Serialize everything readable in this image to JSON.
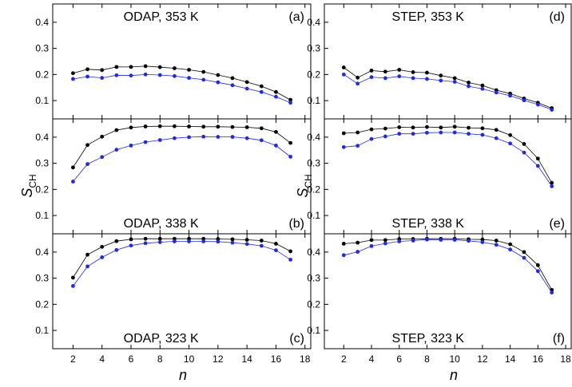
{
  "figure": {
    "ylabel_main": "S",
    "ylabel_sub": "CH",
    "xlabel": "n",
    "series_colors": [
      "#000000",
      "#1f2ae6"
    ]
  },
  "chart_data": [
    {
      "type": "line",
      "title": "ODAP, 353 K",
      "letter": "(a)",
      "x": [
        2,
        3,
        4,
        5,
        6,
        7,
        8,
        9,
        10,
        11,
        12,
        13,
        14,
        15,
        16,
        17
      ],
      "ylim": [
        0.03,
        0.47
      ],
      "yticks": [
        0.1,
        0.2,
        0.3,
        0.4
      ],
      "series": [
        {
          "name": "black",
          "values": [
            0.205,
            0.22,
            0.217,
            0.229,
            0.229,
            0.232,
            0.228,
            0.224,
            0.218,
            0.21,
            0.198,
            0.186,
            0.171,
            0.155,
            0.133,
            0.103
          ]
        },
        {
          "name": "blue",
          "values": [
            0.183,
            0.192,
            0.187,
            0.197,
            0.196,
            0.2,
            0.198,
            0.194,
            0.187,
            0.18,
            0.17,
            0.159,
            0.146,
            0.133,
            0.115,
            0.092
          ]
        }
      ]
    },
    {
      "type": "line",
      "title": "STEP, 353 K",
      "letter": "(d)",
      "x": [
        2,
        3,
        4,
        5,
        6,
        7,
        8,
        9,
        10,
        11,
        12,
        13,
        14,
        15,
        16,
        17
      ],
      "ylim": [
        0.03,
        0.47
      ],
      "yticks": [
        0.1,
        0.2,
        0.3,
        0.4
      ],
      "series": [
        {
          "name": "black",
          "values": [
            0.227,
            0.188,
            0.215,
            0.211,
            0.218,
            0.209,
            0.207,
            0.196,
            0.186,
            0.169,
            0.158,
            0.14,
            0.127,
            0.108,
            0.092,
            0.071
          ]
        },
        {
          "name": "blue",
          "values": [
            0.2,
            0.165,
            0.19,
            0.186,
            0.193,
            0.186,
            0.183,
            0.177,
            0.172,
            0.155,
            0.145,
            0.131,
            0.119,
            0.101,
            0.085,
            0.065
          ]
        }
      ]
    },
    {
      "type": "line",
      "title": "ODAP, 338 K",
      "letter": "(b)",
      "x": [
        2,
        3,
        4,
        5,
        6,
        7,
        8,
        9,
        10,
        11,
        12,
        13,
        14,
        15,
        16,
        17
      ],
      "ylim": [
        0.03,
        0.47
      ],
      "yticks": [
        0.1,
        0.2,
        0.3,
        0.4
      ],
      "series": [
        {
          "name": "black",
          "values": [
            0.284,
            0.37,
            0.402,
            0.427,
            0.437,
            0.441,
            0.442,
            0.442,
            0.441,
            0.44,
            0.44,
            0.439,
            0.438,
            0.434,
            0.42,
            0.378
          ]
        },
        {
          "name": "blue",
          "values": [
            0.23,
            0.297,
            0.324,
            0.352,
            0.368,
            0.381,
            0.389,
            0.396,
            0.4,
            0.402,
            0.401,
            0.401,
            0.396,
            0.388,
            0.368,
            0.325
          ]
        }
      ]
    },
    {
      "type": "line",
      "title": "STEP, 338 K",
      "letter": "(e)",
      "x": [
        2,
        3,
        4,
        5,
        6,
        7,
        8,
        9,
        10,
        11,
        12,
        13,
        14,
        15,
        16,
        17
      ],
      "ylim": [
        0.03,
        0.47
      ],
      "yticks": [
        0.1,
        0.2,
        0.3,
        0.4
      ],
      "series": [
        {
          "name": "black",
          "values": [
            0.415,
            0.418,
            0.43,
            0.433,
            0.438,
            0.437,
            0.439,
            0.437,
            0.44,
            0.436,
            0.434,
            0.428,
            0.408,
            0.374,
            0.318,
            0.225
          ]
        },
        {
          "name": "blue",
          "values": [
            0.362,
            0.367,
            0.393,
            0.403,
            0.413,
            0.413,
            0.417,
            0.418,
            0.418,
            0.413,
            0.409,
            0.396,
            0.376,
            0.341,
            0.29,
            0.212
          ]
        }
      ]
    },
    {
      "type": "line",
      "title": "ODAP, 323 K",
      "letter": "(c)",
      "x": [
        2,
        3,
        4,
        5,
        6,
        7,
        8,
        9,
        10,
        11,
        12,
        13,
        14,
        15,
        16,
        17
      ],
      "ylim": [
        0.03,
        0.47
      ],
      "yticks": [
        0.1,
        0.2,
        0.3,
        0.4
      ],
      "series": [
        {
          "name": "black",
          "values": [
            0.302,
            0.39,
            0.42,
            0.442,
            0.449,
            0.451,
            0.451,
            0.451,
            0.451,
            0.451,
            0.45,
            0.449,
            0.447,
            0.444,
            0.432,
            0.403
          ]
        },
        {
          "name": "blue",
          "values": [
            0.27,
            0.345,
            0.38,
            0.408,
            0.425,
            0.434,
            0.438,
            0.441,
            0.441,
            0.441,
            0.44,
            0.436,
            0.431,
            0.424,
            0.407,
            0.371
          ]
        }
      ]
    },
    {
      "type": "line",
      "title": "STEP, 323 K",
      "letter": "(f)",
      "x": [
        2,
        3,
        4,
        5,
        6,
        7,
        8,
        9,
        10,
        11,
        12,
        13,
        14,
        15,
        16,
        17
      ],
      "ylim": [
        0.03,
        0.47
      ],
      "yticks": [
        0.1,
        0.2,
        0.3,
        0.4
      ],
      "series": [
        {
          "name": "black",
          "values": [
            0.432,
            0.436,
            0.446,
            0.446,
            0.45,
            0.45,
            0.451,
            0.451,
            0.451,
            0.449,
            0.448,
            0.444,
            0.43,
            0.4,
            0.35,
            0.255
          ]
        },
        {
          "name": "blue",
          "values": [
            0.388,
            0.401,
            0.423,
            0.433,
            0.441,
            0.444,
            0.448,
            0.447,
            0.447,
            0.443,
            0.438,
            0.428,
            0.41,
            0.378,
            0.327,
            0.245
          ]
        }
      ]
    }
  ],
  "x_axis": {
    "xlim": [
      0.6,
      18.4
    ],
    "ticks": [
      2,
      4,
      6,
      8,
      10,
      12,
      14,
      16,
      18
    ]
  }
}
